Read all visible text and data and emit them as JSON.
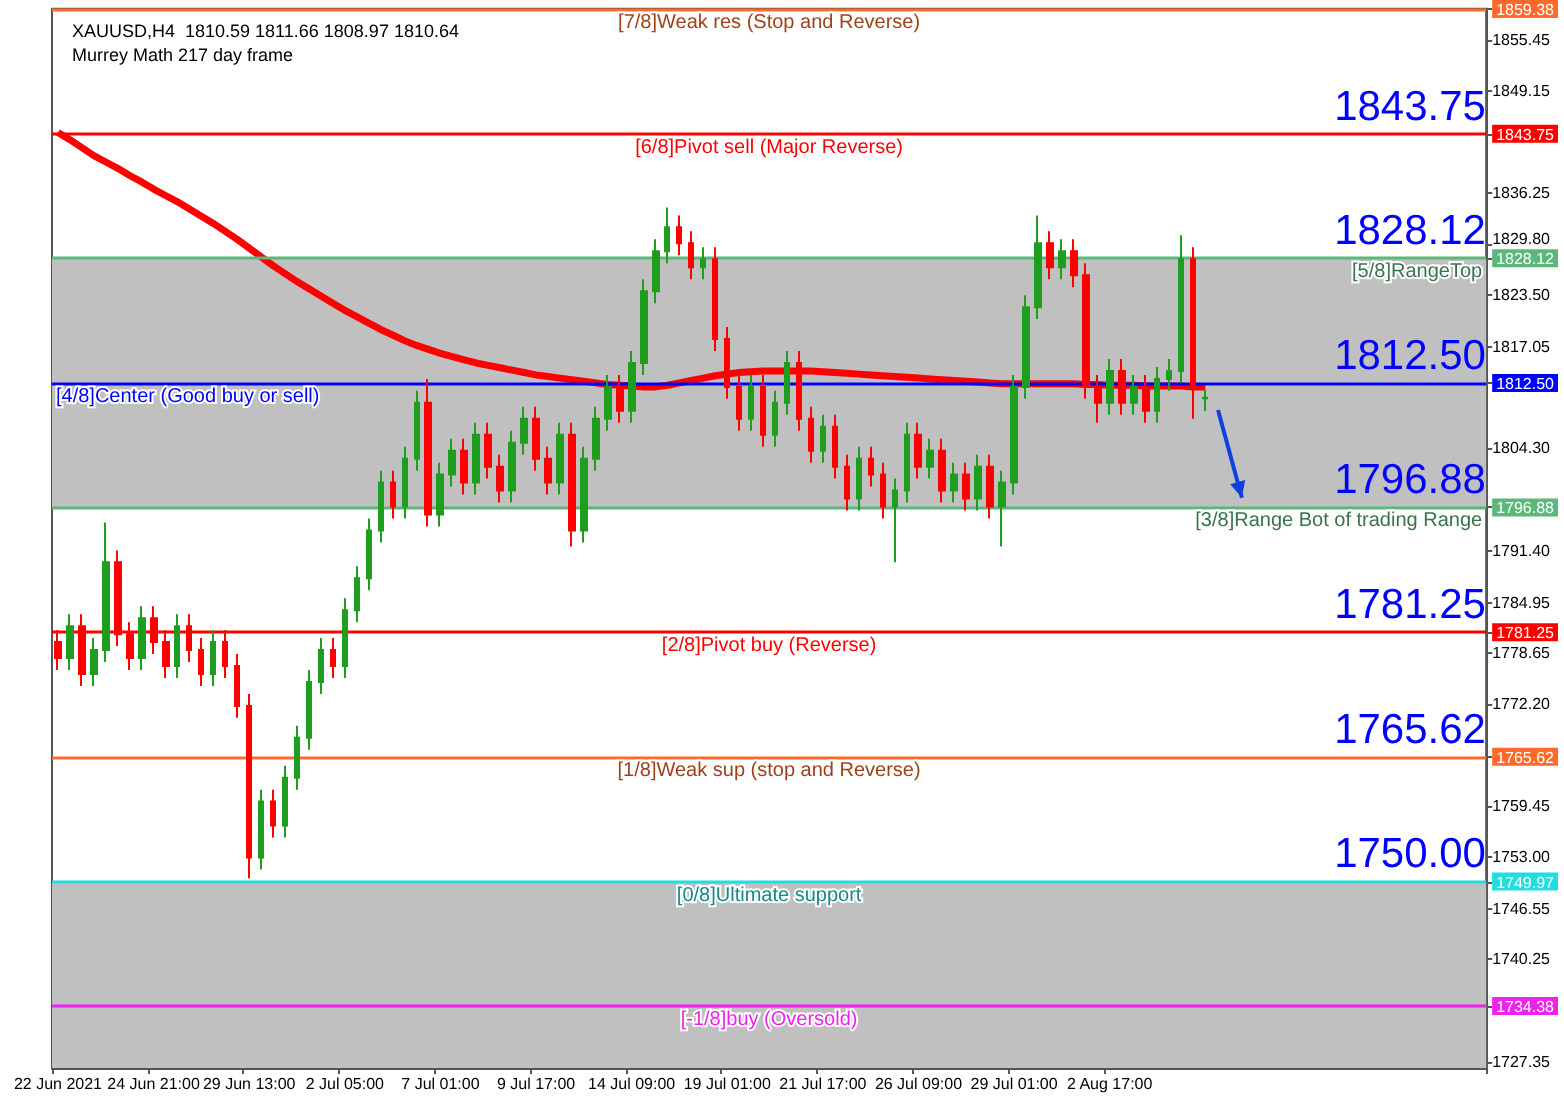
{
  "chart_data": {
    "type": "candlestick",
    "title": "XAUUSD,H4  1810.59 1811.66 1808.97 1810.64",
    "subtitle": "Murrey Math 217 day frame",
    "categories": [
      "22 Jun 2021",
      null,
      null,
      null,
      null,
      null,
      null,
      null,
      "24 Jun 21:00",
      null,
      null,
      null,
      null,
      null,
      null,
      null,
      "29 Jun 13:00",
      null,
      null,
      null,
      null,
      null,
      null,
      null,
      "2 Jul 05:00",
      null,
      null,
      null,
      null,
      null,
      null,
      null,
      "7 Jul 01:00",
      null,
      null,
      null,
      null,
      null,
      null,
      null,
      "9 Jul 17:00",
      null,
      null,
      null,
      null,
      null,
      null,
      null,
      "14 Jul 09:00",
      null,
      null,
      null,
      null,
      null,
      null,
      null,
      "19 Jul 01:00",
      null,
      null,
      null,
      null,
      null,
      null,
      null,
      "21 Jul 17:00",
      null,
      null,
      null,
      null,
      null,
      null,
      null,
      "26 Jul 09:00",
      null,
      null,
      null,
      null,
      null,
      null,
      null,
      "29 Jul 01:00",
      null,
      null,
      null,
      null,
      null,
      null,
      null,
      "2 Aug 17:00",
      null,
      null,
      null,
      null,
      null,
      null,
      null,
      null,
      null,
      null,
      null,
      null,
      null,
      null,
      null,
      null,
      null,
      null,
      null,
      null,
      null,
      null,
      null,
      null,
      null,
      null,
      null,
      null,
      null,
      null,
      null
    ],
    "ohlc": [
      [
        1780,
        1781.5,
        1776.5,
        1778
      ],
      [
        1778,
        1783.5,
        1776.5,
        1782
      ],
      [
        1782,
        1783.5,
        1774.5,
        1776
      ],
      [
        1776,
        1780.5,
        1774.5,
        1779
      ],
      [
        1779,
        1795,
        1777.5,
        1790
      ],
      [
        1790,
        1791.5,
        1779.5,
        1781
      ],
      [
        1781,
        1782.5,
        1776.5,
        1778
      ],
      [
        1778,
        1784.5,
        1776.5,
        1783
      ],
      [
        1783,
        1784.5,
        1778.5,
        1780
      ],
      [
        1780,
        1781.5,
        1775.5,
        1777
      ],
      [
        1777,
        1783.5,
        1775.5,
        1782
      ],
      [
        1782,
        1783.5,
        1777.5,
        1779
      ],
      [
        1779,
        1780.5,
        1774.5,
        1776
      ],
      [
        1776,
        1781.5,
        1774.5,
        1780
      ],
      [
        1780,
        1781.5,
        1775.5,
        1777
      ],
      [
        1777,
        1778.5,
        1770.5,
        1772
      ],
      [
        1772,
        1773.5,
        1750.4,
        1753
      ],
      [
        1753,
        1761.5,
        1751.5,
        1760
      ],
      [
        1760,
        1761.5,
        1755.5,
        1757
      ],
      [
        1757,
        1764.5,
        1755.5,
        1763
      ],
      [
        1763,
        1769.5,
        1761.5,
        1768
      ],
      [
        1768,
        1776.5,
        1766.5,
        1775
      ],
      [
        1775,
        1780.5,
        1773.5,
        1779
      ],
      [
        1779,
        1780.5,
        1775.5,
        1777
      ],
      [
        1777,
        1785.5,
        1775.5,
        1784
      ],
      [
        1784,
        1789.5,
        1782.5,
        1788
      ],
      [
        1788,
        1795.5,
        1786.5,
        1794
      ],
      [
        1794,
        1801.5,
        1792.5,
        1800
      ],
      [
        1800,
        1801.5,
        1795.5,
        1797
      ],
      [
        1797,
        1804.5,
        1795.5,
        1803
      ],
      [
        1803,
        1811.5,
        1801.5,
        1810
      ],
      [
        1810,
        1813,
        1794.5,
        1796
      ],
      [
        1796,
        1802.5,
        1794.5,
        1801
      ],
      [
        1801,
        1805.5,
        1799.5,
        1804
      ],
      [
        1804,
        1805.5,
        1798.5,
        1800
      ],
      [
        1800,
        1807.5,
        1798.5,
        1806
      ],
      [
        1806,
        1807.5,
        1800.5,
        1802
      ],
      [
        1802,
        1803.5,
        1797.5,
        1799
      ],
      [
        1799,
        1806.5,
        1797.5,
        1805
      ],
      [
        1805,
        1809.5,
        1803.5,
        1808
      ],
      [
        1808,
        1809.5,
        1801.5,
        1803
      ],
      [
        1803,
        1804.5,
        1798.5,
        1800
      ],
      [
        1800,
        1807.5,
        1798.5,
        1806
      ],
      [
        1806,
        1807.5,
        1792,
        1794
      ],
      [
        1794,
        1804.5,
        1792.5,
        1803
      ],
      [
        1803,
        1809.5,
        1801.5,
        1808
      ],
      [
        1808,
        1813.5,
        1806.5,
        1812
      ],
      [
        1812,
        1813.5,
        1807.5,
        1809
      ],
      [
        1809,
        1816.5,
        1807.5,
        1815
      ],
      [
        1815,
        1825.5,
        1813.5,
        1824
      ],
      [
        1824,
        1830.5,
        1822.5,
        1829
      ],
      [
        1829,
        1834.5,
        1827.5,
        1832
      ],
      [
        1832,
        1833.5,
        1828.5,
        1830
      ],
      [
        1830,
        1831.5,
        1825.5,
        1827
      ],
      [
        1827,
        1829.5,
        1825.5,
        1828
      ],
      [
        1828,
        1829.5,
        1816.5,
        1818
      ],
      [
        1818,
        1819.5,
        1810.5,
        1812
      ],
      [
        1812,
        1813.5,
        1806.5,
        1808
      ],
      [
        1808,
        1813.5,
        1806.5,
        1812
      ],
      [
        1812,
        1813.5,
        1804.5,
        1806
      ],
      [
        1806,
        1811.5,
        1804.5,
        1810
      ],
      [
        1810,
        1816.5,
        1808.5,
        1815
      ],
      [
        1815,
        1816.5,
        1806.5,
        1808
      ],
      [
        1808,
        1809.5,
        1802.5,
        1804
      ],
      [
        1804,
        1808.5,
        1802.5,
        1807
      ],
      [
        1807,
        1808.5,
        1800.5,
        1802
      ],
      [
        1802,
        1803.5,
        1796.5,
        1798
      ],
      [
        1798,
        1804.5,
        1796.5,
        1803
      ],
      [
        1803,
        1804.5,
        1799.5,
        1801
      ],
      [
        1801,
        1802.5,
        1795.5,
        1797
      ],
      [
        1797,
        1800.5,
        1790,
        1799
      ],
      [
        1799,
        1807.5,
        1797.5,
        1806
      ],
      [
        1806,
        1807.5,
        1800.5,
        1802
      ],
      [
        1802,
        1805.5,
        1800.5,
        1804
      ],
      [
        1804,
        1805.5,
        1797.5,
        1799
      ],
      [
        1799,
        1802.5,
        1797.5,
        1801
      ],
      [
        1801,
        1802.5,
        1796.5,
        1798
      ],
      [
        1798,
        1803.5,
        1796.5,
        1802
      ],
      [
        1802,
        1803.5,
        1795.5,
        1797
      ],
      [
        1797,
        1801.5,
        1792,
        1800
      ],
      [
        1800,
        1813.5,
        1798.5,
        1812
      ],
      [
        1812,
        1823.5,
        1810.5,
        1822
      ],
      [
        1822,
        1833.5,
        1820.5,
        1830
      ],
      [
        1830,
        1831.5,
        1825.5,
        1827
      ],
      [
        1827,
        1830.5,
        1825.5,
        1829
      ],
      [
        1829,
        1830.5,
        1824.5,
        1826
      ],
      [
        1826,
        1827.5,
        1810.5,
        1812
      ],
      [
        1812,
        1813.5,
        1807.5,
        1810
      ],
      [
        1810,
        1815.5,
        1808.5,
        1814
      ],
      [
        1814,
        1815.5,
        1808.5,
        1810
      ],
      [
        1810,
        1813.5,
        1808.5,
        1812
      ],
      [
        1812,
        1813.5,
        1807.5,
        1809
      ],
      [
        1809,
        1814.5,
        1807.5,
        1813
      ],
      [
        1813,
        1815.5,
        1811.5,
        1814
      ],
      [
        1814,
        1831,
        1812.5,
        1828
      ],
      [
        1828,
        1829.5,
        1808,
        1812
      ],
      [
        1810.59,
        1811.66,
        1808.97,
        1810.64
      ],
      null,
      null,
      null,
      null,
      null,
      null,
      null,
      null,
      null,
      null,
      null,
      null,
      null,
      null,
      null,
      null,
      null,
      null,
      null,
      null,
      null,
      null,
      null
    ],
    "colors": [
      "#ff0000",
      "#1e9e1e",
      "#ff0000",
      "#1e9e1e",
      "#1e9e1e",
      "#ff0000",
      "#ff0000",
      "#1e9e1e",
      "#ff0000",
      "#ff0000",
      "#1e9e1e",
      "#ff0000",
      "#ff0000",
      "#1e9e1e",
      "#ff0000",
      "#ff0000",
      "#ff0000",
      "#1e9e1e",
      "#ff0000",
      "#1e9e1e",
      "#1e9e1e",
      "#1e9e1e",
      "#1e9e1e",
      "#ff0000",
      "#1e9e1e",
      "#1e9e1e",
      "#1e9e1e",
      "#1e9e1e",
      "#ff0000",
      "#1e9e1e",
      "#1e9e1e",
      "#ff0000",
      "#1e9e1e",
      "#1e9e1e",
      "#ff0000",
      "#1e9e1e",
      "#ff0000",
      "#ff0000",
      "#1e9e1e",
      "#1e9e1e",
      "#ff0000",
      "#ff0000",
      "#1e9e1e",
      "#ff0000",
      "#1e9e1e",
      "#1e9e1e",
      "#1e9e1e",
      "#ff0000",
      "#1e9e1e",
      "#1e9e1e",
      "#1e9e1e",
      "#1e9e1e",
      "#ff0000",
      "#ff0000",
      "#1e9e1e",
      "#ff0000",
      "#ff0000",
      "#ff0000",
      "#1e9e1e",
      "#ff0000",
      "#1e9e1e",
      "#1e9e1e",
      "#ff0000",
      "#ff0000",
      "#1e9e1e",
      "#ff0000",
      "#ff0000",
      "#1e9e1e",
      "#ff0000",
      "#ff0000",
      "#1e9e1e",
      "#1e9e1e",
      "#ff0000",
      "#1e9e1e",
      "#ff0000",
      "#1e9e1e",
      "#ff0000",
      "#1e9e1e",
      "#ff0000",
      "#1e9e1e",
      "#1e9e1e",
      "#1e9e1e",
      "#1e9e1e",
      "#ff0000",
      "#1e9e1e",
      "#ff0000",
      "#ff0000",
      "#ff0000",
      "#1e9e1e",
      "#ff0000",
      "#1e9e1e",
      "#ff0000",
      "#1e9e1e",
      "#1e9e1e",
      "#1e9e1e",
      "#ff0000",
      "#1e9e1e",
      null,
      null,
      null,
      null,
      null,
      null,
      null,
      null,
      null,
      null,
      null,
      null,
      null,
      null,
      null,
      null,
      null,
      null,
      null,
      null,
      null,
      null,
      null
    ],
    "series": [
      {
        "type": "line",
        "color": "#ff0000",
        "values": [
          1843.9,
          1843,
          1842,
          1841,
          1840.2,
          1839.4,
          1838.5,
          1837.7,
          1836.8,
          1836,
          1835.2,
          1834.3,
          1833.4,
          1832.5,
          1831.5,
          1830.5,
          1829.4,
          1828.3,
          1827.2,
          1826.2,
          1825.2,
          1824.3,
          1823.4,
          1822.5,
          1821.6,
          1820.8,
          1820,
          1819.2,
          1818.5,
          1817.8,
          1817.2,
          1816.7,
          1816.2,
          1815.8,
          1815.4,
          1815,
          1814.7,
          1814.4,
          1814.1,
          1813.8,
          1813.5,
          1813.3,
          1813.1,
          1812.9,
          1812.7,
          1812.5,
          1812.3,
          1812.2,
          1812.1,
          1812,
          1812,
          1812.2,
          1812.5,
          1812.8,
          1813.1,
          1813.4,
          1813.6,
          1813.8,
          1813.9,
          1814,
          1814,
          1814,
          1814,
          1814,
          1813.9,
          1813.8,
          1813.7,
          1813.6,
          1813.5,
          1813.4,
          1813.3,
          1813.2,
          1813.1,
          1813,
          1812.9,
          1812.8,
          1812.7,
          1812.6,
          1812.5,
          1812.4,
          1812.4,
          1812.4,
          1812.4,
          1812.4,
          1812.4,
          1812.4,
          1812.3,
          1812.3,
          1812.2,
          1812.2,
          1812.2,
          1812.1,
          1812.1,
          1812.1,
          1812.1,
          1812,
          1812,
          null,
          null,
          null,
          null,
          null,
          null,
          null,
          null,
          null,
          null,
          null,
          null,
          null,
          null,
          null,
          null,
          null,
          null,
          null,
          null,
          null,
          null,
          null
        ]
      }
    ],
    "ylim": [
      1726.6,
      1859.4
    ],
    "yticks": [
      1727.35,
      1734.38,
      1740.25,
      1746.55,
      1749.97,
      {
        "value": 1753,
        "label": "1753.00"
      },
      1759.45,
      1765.62,
      {
        "value": 1772.2,
        "label": "1772.20"
      },
      1778.65,
      1781.25,
      1784.95,
      {
        "value": 1791.4,
        "label": "1791.40"
      },
      1796.88,
      {
        "value": 1804.3,
        "label": "1804.30"
      },
      {
        "value": 1812.5,
        "label": "1812.50"
      },
      1817.05,
      {
        "value": 1823.5,
        "label": "1823.50"
      },
      1828.12,
      {
        "value": 1829.8,
        "label": "1829.80"
      },
      1836.25,
      1843.75,
      1849.15,
      1855.45,
      1859.38
    ],
    "ref_lines": [
      {
        "axis": "y",
        "value": 1859.38,
        "label": "[7/8]Weak res (Stop and Reverse)",
        "color": "#ff6a2a"
      },
      {
        "axis": "y",
        "value": 1843.75,
        "label": "[6/8]Pivot sell (Major Reverse)",
        "color": "#ff0000"
      },
      {
        "axis": "y",
        "value": 1828.12,
        "label": "[5/8]RangeTop",
        "color": "#5cb87a"
      },
      {
        "axis": "y",
        "value": 1812.5,
        "label": "[4/8]Center (Good buy or sell)",
        "color": "#0000ff"
      },
      {
        "axis": "y",
        "value": 1796.88,
        "label": "[3/8]Range Bot of trading Range",
        "color": "#5cb87a"
      },
      {
        "axis": "y",
        "value": 1781.25,
        "label": "[2/8]Pivot buy (Reverse)",
        "color": "#ff0000"
      },
      {
        "axis": "y",
        "value": 1765.62,
        "label": "[1/8]Weak sup (stop and Reverse)",
        "color": "#ff6a2a"
      },
      {
        "axis": "y",
        "value": 1749.97,
        "label": "[0/8]Ultimate support",
        "color": "#22dddd"
      },
      {
        "axis": "y",
        "value": 1734.38,
        "label": "[-1/8]buy (Oversold)",
        "color": "#ee22ee"
      }
    ],
    "bands": [
      {
        "axis": "y",
        "from": 1796.88,
        "to": 1828.12,
        "color": "#c0c0c0"
      },
      {
        "axis": "y",
        "from": 1726.6,
        "to": 1749.97,
        "color": "#c0c0c0"
      }
    ],
    "annotations": [
      "1843.75",
      "1828.12",
      "1812.50",
      "1796.88",
      "1781.25",
      "1765.62",
      "1750.00"
    ],
    "grid": false
  }
}
